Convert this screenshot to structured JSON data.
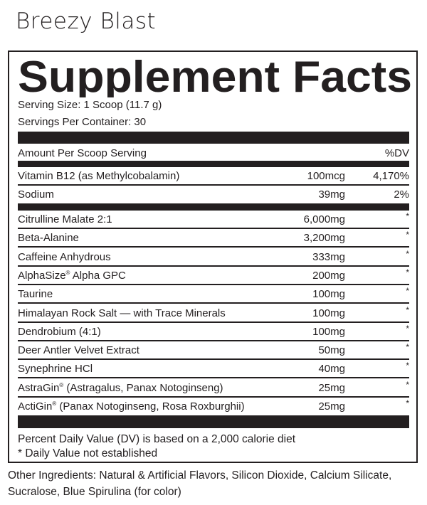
{
  "flavor": "Breezy Blast",
  "title": "Supplement Facts",
  "serving_size": "Serving Size: 1 Scoop (11.7 g)",
  "servings_per_container": "Servings Per Container: 30",
  "header": {
    "amount": "Amount Per Scoop Serving",
    "dv": "%DV"
  },
  "vitamins": [
    {
      "name": "Vitamin B12 (as Methylcobalamin)",
      "amount": "100mcg",
      "dv": "4,170%"
    },
    {
      "name": "Sodium",
      "amount": "39mg",
      "dv": "2%"
    }
  ],
  "ingredients": [
    {
      "name": "Citrulline Malate 2:1",
      "amount": "6,000mg",
      "dv": "*"
    },
    {
      "name": "Beta-Alanine",
      "amount": "3,200mg",
      "dv": "*"
    },
    {
      "name": "Caffeine Anhydrous",
      "amount": "333mg",
      "dv": "*"
    },
    {
      "name": "AlphaSize",
      "reg": "®",
      "rest": " Alpha GPC",
      "amount": "200mg",
      "dv": "*"
    },
    {
      "name": "Taurine",
      "amount": "100mg",
      "dv": "*"
    },
    {
      "name": "Himalayan Rock Salt — with Trace Minerals",
      "amount": "100mg",
      "dv": "*"
    },
    {
      "name": "Dendrobium (4:1)",
      "amount": "100mg",
      "dv": "*"
    },
    {
      "name": "Deer Antler Velvet Extract",
      "amount": "50mg",
      "dv": "*"
    },
    {
      "name": "Synephrine HCl",
      "amount": "40mg",
      "dv": "*"
    },
    {
      "name": "AstraGin",
      "reg": "®",
      "rest": " (Astragalus, Panax Notoginseng)",
      "amount": "25mg",
      "dv": "*"
    },
    {
      "name": "ActiGin",
      "reg": "®",
      "rest": " (Panax Notoginseng, Rosa Roxburghii)",
      "amount": "25mg",
      "dv": "*"
    }
  ],
  "footnotes": [
    "Percent Daily Value (DV) is based on a 2,000 calorie diet",
    "* Daily Value not established"
  ],
  "other_ingredients": "Other Ingredients: Natural & Artificial Flavors, Silicon Dioxide, Calcium Silicate, Sucralose, Blue Spirulina (for color)",
  "colors": {
    "ink": "#231f20",
    "background": "#ffffff"
  }
}
